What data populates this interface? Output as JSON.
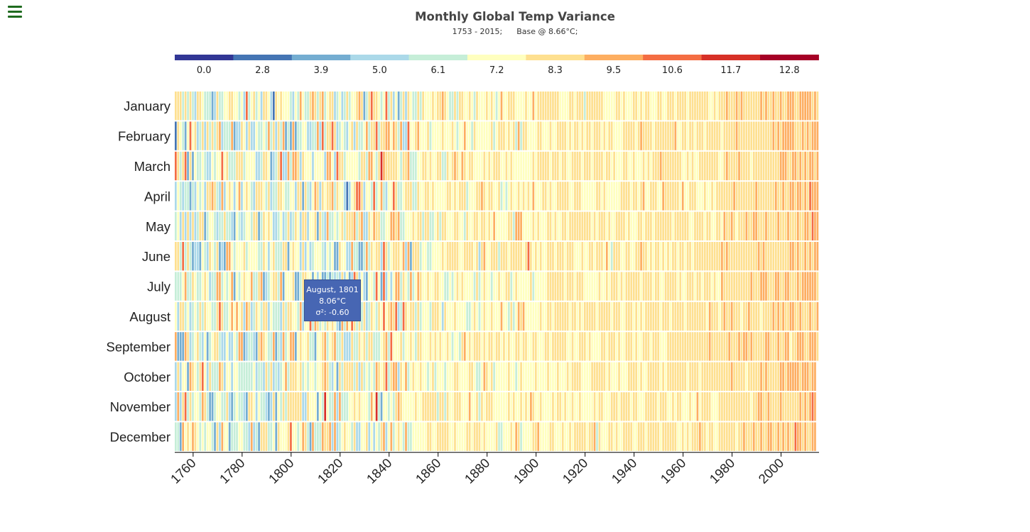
{
  "header": {
    "title": "Monthly Global Temp Variance",
    "subtitle_range": "1753 - 2015;",
    "subtitle_base": "Base @ 8.66°C;"
  },
  "tooltip": {
    "line1": "August, 1801",
    "line2": "8.06°C",
    "line3": "σ²: -0.60"
  },
  "chart_data": {
    "type": "heatmap",
    "title": "Monthly Global Temp Variance",
    "subtitle": "1753 - 2015;      Base @ 8.66°C;",
    "x_range": [
      1753,
      2015
    ],
    "base_temperature": 8.66,
    "y_categories": [
      "January",
      "February",
      "March",
      "April",
      "May",
      "June",
      "July",
      "August",
      "September",
      "October",
      "November",
      "December"
    ],
    "x_ticks": [
      1760,
      1780,
      1800,
      1820,
      1840,
      1860,
      1880,
      1900,
      1920,
      1940,
      1960,
      1980,
      2000
    ],
    "legend": {
      "placement": "top",
      "thresholds": [
        "0.0",
        "2.8",
        "3.9",
        "5.0",
        "6.1",
        "7.2",
        "8.3",
        "9.5",
        "10.6",
        "11.7",
        "12.8"
      ],
      "colors": [
        "#313695",
        "#4575b4",
        "#74add1",
        "#abd9e9",
        "#c6eed8",
        "#ffffbf",
        "#fee090",
        "#fdae61",
        "#f46d43",
        "#d73027",
        "#a50026"
      ]
    },
    "highlighted_cell": {
      "year": 1801,
      "month": "August",
      "temperature": 8.06,
      "variance": -0.6
    }
  }
}
